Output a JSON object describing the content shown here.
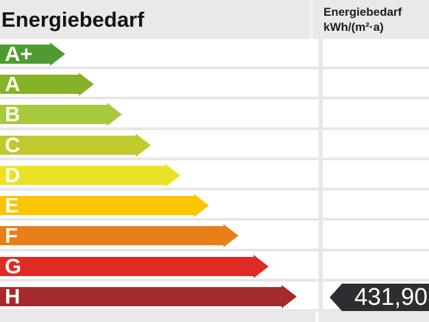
{
  "header": {
    "title": "Energiebedarf",
    "unit_line1": "Energiebedarf",
    "unit_line2": "kWh/(m²·a)"
  },
  "chart_data": {
    "type": "bar",
    "orientation": "horizontal",
    "title": "Energiebedarf",
    "unit": "kWh/(m²·a)",
    "categories": [
      "A+",
      "A",
      "B",
      "C",
      "D",
      "E",
      "F",
      "G",
      "H"
    ],
    "ratings": [
      {
        "label": "A+",
        "color": "#4f9b33",
        "arrow_width": 95
      },
      {
        "label": "A",
        "color": "#85b226",
        "arrow_width": 137
      },
      {
        "label": "B",
        "color": "#a7c93e",
        "arrow_width": 178
      },
      {
        "label": "C",
        "color": "#c0c92e",
        "arrow_width": 220
      },
      {
        "label": "D",
        "color": "#ece225",
        "arrow_width": 263
      },
      {
        "label": "E",
        "color": "#fcc500",
        "arrow_width": 305
      },
      {
        "label": "F",
        "color": "#e8801a",
        "arrow_width": 348
      },
      {
        "label": "G",
        "color": "#e02a25",
        "arrow_width": 392
      },
      {
        "label": "H",
        "color": "#a42a2d",
        "arrow_width": 433
      }
    ],
    "value": 431.9,
    "value_label": "431,90",
    "value_class": "H",
    "badge_color": "#2e2e32",
    "colors": {
      "header_background": "#e9e9e9",
      "row_background": "#ffffff",
      "grid_line": "#e7e7e7",
      "letter_text": "#fdfcef",
      "badge_text": "#ffffff"
    }
  }
}
